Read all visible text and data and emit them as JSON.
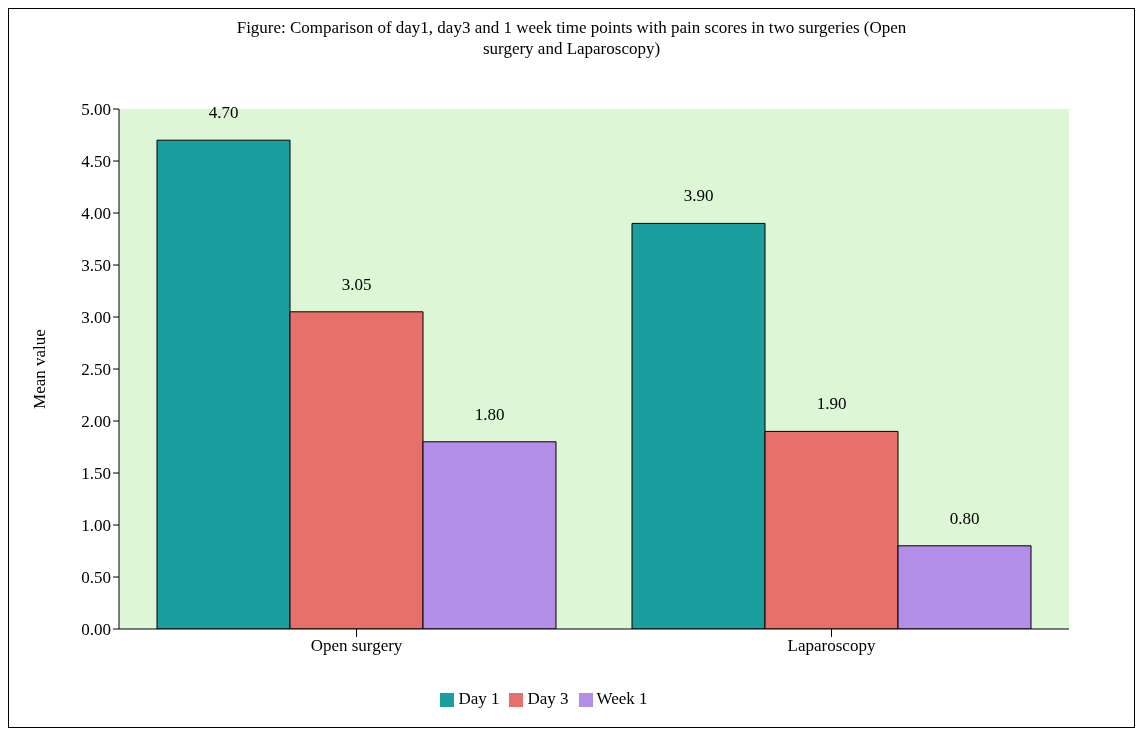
{
  "chart_data": {
    "type": "bar",
    "title": "Figure: Comparison of day1, day3 and 1 week time points with pain scores in two surgeries (Open surgery and Laparoscopy)",
    "ylabel": "Mean value",
    "categories": [
      "Open surgery",
      "Laparoscopy"
    ],
    "series": [
      {
        "name": "Day 1",
        "color": "#1a9e9e",
        "values": [
          4.7,
          3.9
        ],
        "value_labels": [
          "4.70",
          "3.90"
        ]
      },
      {
        "name": "Day 3",
        "color": "#e8706a",
        "values": [
          3.05,
          1.9
        ],
        "value_labels": [
          "3.05",
          "1.90"
        ]
      },
      {
        "name": "Week 1",
        "color": "#b38ee8",
        "values": [
          1.8,
          0.8
        ],
        "value_labels": [
          "1.80",
          "0.80"
        ]
      }
    ],
    "ylim": [
      0,
      5
    ],
    "yticks": [
      {
        "value": 0,
        "label": "0.00"
      },
      {
        "value": 0.5,
        "label": "0.50"
      },
      {
        "value": 1,
        "label": "1.00"
      },
      {
        "value": 1.5,
        "label": "1.50"
      },
      {
        "value": 2,
        "label": "2.00"
      },
      {
        "value": 2.5,
        "label": "2.50"
      },
      {
        "value": 3,
        "label": "3.00"
      },
      {
        "value": 3.5,
        "label": "3.50"
      },
      {
        "value": 4,
        "label": "4.00"
      },
      {
        "value": 4.5,
        "label": "4.50"
      },
      {
        "value": 5,
        "label": "5.00"
      }
    ],
    "grid": false,
    "legend": "bottom"
  }
}
